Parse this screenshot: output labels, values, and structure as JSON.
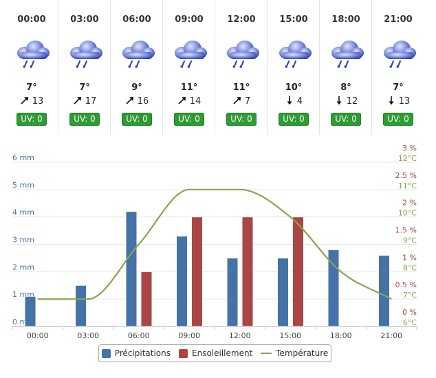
{
  "forecast": [
    {
      "time": "00:00",
      "temp": "7°",
      "wind": "13",
      "wind_dir": "ne",
      "uv": "UV: 0"
    },
    {
      "time": "03:00",
      "temp": "7°",
      "wind": "17",
      "wind_dir": "ne",
      "uv": "UV: 0"
    },
    {
      "time": "06:00",
      "temp": "9°",
      "wind": "16",
      "wind_dir": "ne",
      "uv": "UV: 0"
    },
    {
      "time": "09:00",
      "temp": "11°",
      "wind": "14",
      "wind_dir": "ne",
      "uv": "UV: 0"
    },
    {
      "time": "12:00",
      "temp": "11°",
      "wind": "7",
      "wind_dir": "ne",
      "uv": "UV: 0"
    },
    {
      "time": "15:00",
      "temp": "10°",
      "wind": "4",
      "wind_dir": "s",
      "uv": "UV: 0"
    },
    {
      "time": "18:00",
      "temp": "8°",
      "wind": "12",
      "wind_dir": "s",
      "uv": "UV: 0"
    },
    {
      "time": "21:00",
      "temp": "7°",
      "wind": "13",
      "wind_dir": "s",
      "uv": "UV: 0"
    }
  ],
  "icon": "rain-cloud-icon",
  "colors": {
    "precip": "#4572a7",
    "sun": "#aa4643",
    "temp": "#89a54e",
    "uv": "#2e9b33",
    "axis_left": "#4572a7",
    "axis_pct": "#aa4643",
    "axis_temp": "#89a54e"
  },
  "chart_data": {
    "type": "bar",
    "categories": [
      "00:00",
      "03:00",
      "06:00",
      "09:00",
      "12:00",
      "15:00",
      "18:00",
      "21:00"
    ],
    "series": [
      {
        "name": "Précipitations",
        "type": "bar",
        "axis": "mm",
        "values": [
          1.1,
          1.5,
          4.2,
          3.3,
          2.5,
          2.5,
          2.8,
          2.6
        ]
      },
      {
        "name": "Ensoleillement",
        "type": "bar",
        "axis": "%",
        "values": [
          null,
          null,
          1,
          2,
          2,
          2,
          null,
          null
        ]
      },
      {
        "name": "Température",
        "type": "line",
        "axis": "°C",
        "values": [
          7,
          7,
          9,
          11,
          11,
          10,
          8,
          7
        ]
      }
    ],
    "y_left": {
      "ticks": [
        "0 mm",
        "1 mm",
        "2 mm",
        "3 mm",
        "4 mm",
        "5 mm",
        "6 mm"
      ],
      "range": [
        0,
        6
      ]
    },
    "y_pct": {
      "ticks": [
        "0 %",
        "0.5 %",
        "1 %",
        "1.5 %",
        "2 %",
        "2.5 %",
        "3 %"
      ],
      "range": [
        0,
        3
      ]
    },
    "y_temp": {
      "ticks": [
        "6°C",
        "7°C",
        "8°C",
        "9°C",
        "10°C",
        "11°C",
        "12°C"
      ],
      "range": [
        6,
        12
      ]
    },
    "grid": true,
    "legend": {
      "position": "bottom",
      "items": [
        "Précipitations",
        "Ensoleillement",
        "Température"
      ]
    }
  }
}
